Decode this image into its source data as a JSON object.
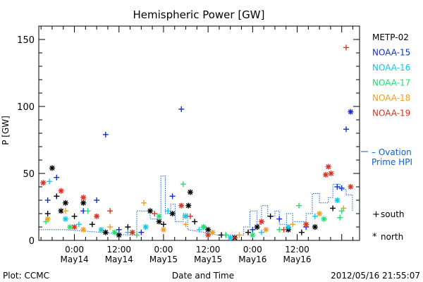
{
  "chart_data": {
    "type": "scatter",
    "title": "Hemispheric Power [GW]",
    "ylabel": "P [GW]",
    "xlabel": "Date and Time",
    "ylim": [
      0,
      160
    ],
    "yticks": [
      0,
      50,
      100,
      150
    ],
    "xlim": [
      -0.4,
      3.2
    ],
    "xticks": [
      {
        "x": 0,
        "line1": "0:00",
        "line2": "May14"
      },
      {
        "x": 0.5,
        "line1": "12:00",
        "line2": "May14"
      },
      {
        "x": 1,
        "line1": "0:00",
        "line2": "May15"
      },
      {
        "x": 1.5,
        "line1": "12:00",
        "line2": "May15"
      },
      {
        "x": 2,
        "line1": "0:00",
        "line2": "May16"
      },
      {
        "x": 2.5,
        "line1": "12:00",
        "line2": "May16"
      }
    ],
    "footer_left": "Plot: CCMC",
    "footer_right": "2012/05/16 21:55:07",
    "legend": [
      {
        "name": "METP-02",
        "color": "#000000"
      },
      {
        "name": "NOAA-15",
        "color": "#1030d0"
      },
      {
        "name": "NOAA-16",
        "color": "#10c8e8"
      },
      {
        "name": "NOAA-17",
        "color": "#20e070"
      },
      {
        "name": "NOAA-18",
        "color": "#f0a020"
      },
      {
        "name": "NOAA-19",
        "color": "#e03020"
      }
    ],
    "ovation_label": [
      "– Ovation",
      "Prime HPI"
    ],
    "ovation_color": "#1060d0",
    "marker_legend": [
      {
        "symbol": "+",
        "label": "south"
      },
      {
        "symbol": "*",
        "label": "north"
      }
    ],
    "ovation_series": [
      [
        -0.4,
        8
      ],
      [
        -0.25,
        8
      ],
      [
        -0.1,
        8
      ],
      [
        0.3,
        6
      ],
      [
        0.6,
        4
      ],
      [
        0.7,
        4
      ],
      [
        0.7,
        22
      ],
      [
        0.85,
        22
      ],
      [
        0.85,
        16
      ],
      [
        0.97,
        16
      ],
      [
        0.97,
        48
      ],
      [
        1.02,
        48
      ],
      [
        1.02,
        20
      ],
      [
        1.08,
        20
      ],
      [
        1.08,
        27
      ],
      [
        1.13,
        27
      ],
      [
        1.13,
        14
      ],
      [
        1.22,
        14
      ],
      [
        1.22,
        20
      ],
      [
        1.27,
        20
      ],
      [
        1.27,
        8
      ],
      [
        1.55,
        5
      ],
      [
        1.6,
        4
      ],
      [
        1.9,
        4
      ],
      [
        1.9,
        10
      ],
      [
        1.97,
        10
      ],
      [
        1.97,
        22
      ],
      [
        2.05,
        22
      ],
      [
        2.05,
        12
      ],
      [
        2.1,
        12
      ],
      [
        2.1,
        26
      ],
      [
        2.17,
        26
      ],
      [
        2.17,
        18
      ],
      [
        2.25,
        18
      ],
      [
        2.25,
        22
      ],
      [
        2.3,
        22
      ],
      [
        2.3,
        12
      ],
      [
        2.38,
        12
      ],
      [
        2.38,
        20
      ],
      [
        2.45,
        20
      ],
      [
        2.45,
        14
      ],
      [
        2.6,
        14
      ],
      [
        2.6,
        20
      ],
      [
        2.67,
        20
      ],
      [
        2.67,
        35
      ],
      [
        2.75,
        35
      ],
      [
        2.75,
        28
      ],
      [
        2.85,
        28
      ],
      [
        2.85,
        32
      ],
      [
        2.9,
        32
      ],
      [
        2.9,
        42
      ],
      [
        2.98,
        42
      ],
      [
        2.98,
        38
      ],
      [
        3.05,
        38
      ],
      [
        3.05,
        34
      ],
      [
        3.12,
        34
      ],
      [
        3.12,
        22
      ]
    ],
    "series": [
      {
        "name": "METP-02",
        "color": "#000000",
        "points": [
          [
            -0.3,
            20,
            "+"
          ],
          [
            -0.25,
            54,
            "*"
          ],
          [
            -0.2,
            33,
            "+"
          ],
          [
            -0.15,
            22,
            "*"
          ],
          [
            -0.1,
            28,
            "*"
          ],
          [
            0,
            18,
            "+"
          ],
          [
            0.1,
            28,
            "*"
          ],
          [
            0.2,
            12,
            "+"
          ],
          [
            0.35,
            6,
            "*"
          ],
          [
            0.5,
            4,
            "*"
          ],
          [
            0.6,
            10,
            "+"
          ],
          [
            0.85,
            22,
            "*"
          ],
          [
            0.95,
            14,
            "*"
          ],
          [
            1.0,
            12,
            "+"
          ],
          [
            1.1,
            20,
            "*"
          ],
          [
            1.28,
            26,
            "*"
          ],
          [
            1.3,
            36,
            "*"
          ],
          [
            1.35,
            14,
            "+"
          ],
          [
            1.5,
            8,
            "*"
          ],
          [
            1.65,
            4,
            "+"
          ],
          [
            1.8,
            2,
            "*"
          ],
          [
            1.95,
            6,
            "+"
          ],
          [
            2.05,
            10,
            "*"
          ],
          [
            2.2,
            18,
            "+"
          ],
          [
            2.4,
            8,
            "*"
          ],
          [
            2.55,
            6,
            "+"
          ],
          [
            2.7,
            10,
            "*"
          ],
          [
            2.9,
            24,
            "+"
          ]
        ]
      },
      {
        "name": "NOAA-15",
        "color": "#1030d0",
        "points": [
          [
            -0.3,
            30,
            "+"
          ],
          [
            -0.2,
            47,
            "+"
          ],
          [
            0.35,
            79,
            "+"
          ],
          [
            0.25,
            30,
            "+"
          ],
          [
            0.1,
            22,
            "+"
          ],
          [
            0.5,
            8,
            "+"
          ],
          [
            0.75,
            6,
            "+"
          ],
          [
            1.1,
            33,
            "+"
          ],
          [
            1.2,
            98,
            "+"
          ],
          [
            1.45,
            10,
            "+"
          ],
          [
            1.7,
            4,
            "+"
          ],
          [
            2.0,
            8,
            "+"
          ],
          [
            2.3,
            16,
            "+"
          ],
          [
            2.6,
            10,
            "+"
          ],
          [
            2.95,
            40,
            "+"
          ],
          [
            3.05,
            83,
            "+"
          ],
          [
            3.1,
            96,
            "*"
          ],
          [
            3.0,
            39,
            "+"
          ]
        ]
      },
      {
        "name": "NOAA-16",
        "color": "#10c8e8",
        "points": [
          [
            -0.28,
            44,
            "+"
          ],
          [
            -0.1,
            16,
            "*"
          ],
          [
            0.05,
            12,
            "+"
          ],
          [
            0.3,
            8,
            "*"
          ],
          [
            0.6,
            6,
            "+"
          ],
          [
            0.8,
            10,
            "*"
          ],
          [
            1.05,
            22,
            "+"
          ],
          [
            1.25,
            18,
            "*"
          ],
          [
            1.4,
            8,
            "+"
          ],
          [
            1.75,
            2,
            "*"
          ],
          [
            2.1,
            6,
            "+"
          ],
          [
            2.4,
            10,
            "*"
          ],
          [
            2.7,
            18,
            "+"
          ],
          [
            2.95,
            30,
            "*"
          ]
        ]
      },
      {
        "name": "NOAA-17",
        "color": "#20e070",
        "points": [
          [
            -0.32,
            14,
            "+"
          ],
          [
            -0.05,
            10,
            "*"
          ],
          [
            0.15,
            22,
            "+"
          ],
          [
            0.45,
            6,
            "*"
          ],
          [
            0.7,
            4,
            "+"
          ],
          [
            0.95,
            18,
            "*"
          ],
          [
            1.22,
            42,
            "+"
          ],
          [
            1.45,
            10,
            "*"
          ],
          [
            1.7,
            4,
            "+"
          ],
          [
            2.0,
            4,
            "*"
          ],
          [
            2.3,
            8,
            "+"
          ],
          [
            2.52,
            26,
            "+"
          ],
          [
            2.8,
            16,
            "*"
          ],
          [
            3.0,
            22,
            "+"
          ],
          [
            2.98,
            17,
            "+"
          ]
        ]
      },
      {
        "name": "NOAA-18",
        "color": "#f0a020",
        "points": [
          [
            -0.3,
            16,
            "*"
          ],
          [
            -0.1,
            22,
            "+"
          ],
          [
            0.1,
            8,
            "*"
          ],
          [
            0.4,
            10,
            "+"
          ],
          [
            0.78,
            28,
            "+"
          ],
          [
            1.0,
            8,
            "*"
          ],
          [
            1.25,
            12,
            "+"
          ],
          [
            1.55,
            6,
            "*"
          ],
          [
            1.85,
            4,
            "+"
          ],
          [
            2.15,
            8,
            "*"
          ],
          [
            2.45,
            12,
            "+"
          ],
          [
            2.75,
            20,
            "*"
          ],
          [
            3.02,
            24,
            "+"
          ]
        ]
      },
      {
        "name": "NOAA-19",
        "color": "#e03020",
        "points": [
          [
            -0.35,
            43,
            "*"
          ],
          [
            -0.15,
            37,
            "*"
          ],
          [
            0.0,
            10,
            "*"
          ],
          [
            0.1,
            32,
            "*"
          ],
          [
            0.25,
            18,
            "*"
          ],
          [
            0.4,
            22,
            "+"
          ],
          [
            0.65,
            6,
            "*"
          ],
          [
            0.9,
            20,
            "+"
          ],
          [
            1.2,
            26,
            "*"
          ],
          [
            1.3,
            18,
            "+"
          ],
          [
            1.5,
            4,
            "*"
          ],
          [
            1.8,
            2,
            "+"
          ],
          [
            2.1,
            14,
            "*"
          ],
          [
            2.35,
            8,
            "+"
          ],
          [
            2.6,
            12,
            "*"
          ],
          [
            2.85,
            55,
            "*"
          ],
          [
            2.88,
            50,
            "*"
          ],
          [
            2.82,
            49,
            "*"
          ],
          [
            3.05,
            144,
            "+"
          ],
          [
            3.1,
            40,
            "*"
          ]
        ]
      }
    ]
  }
}
